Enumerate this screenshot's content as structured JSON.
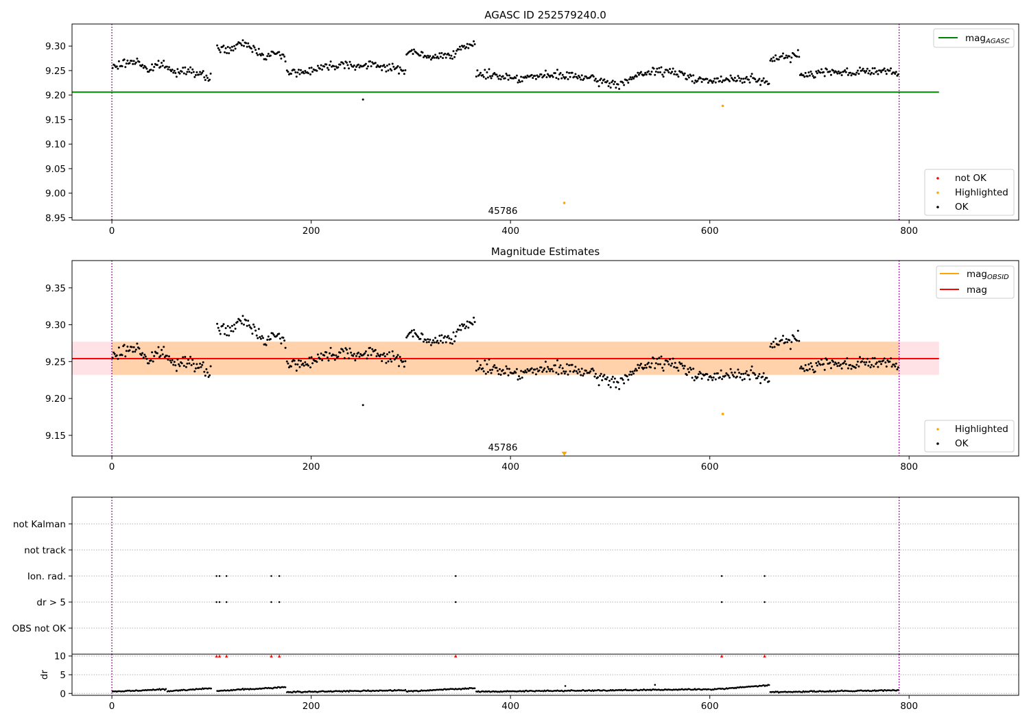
{
  "chart_data": [
    {
      "type": "scatter",
      "title": "AGASC ID 252579240.0",
      "xlim": [
        -40,
        910
      ],
      "ylim": [
        8.945,
        9.345
      ],
      "xticks": [
        0,
        200,
        400,
        600,
        800
      ],
      "yticks": [
        8.95,
        9.0,
        9.05,
        9.1,
        9.15,
        9.2,
        9.25,
        9.3
      ],
      "ytick_labels": [
        "8.95",
        "9.00",
        "9.05",
        "9.10",
        "9.15",
        "9.20",
        "9.25",
        "9.30"
      ],
      "vlines": [
        0,
        790
      ],
      "obsid_label": {
        "text": "45786",
        "x": 395
      },
      "hline": {
        "name": "mag_AGASC",
        "y": 9.206,
        "xmin": -40,
        "xmax": 830,
        "color": "#008000"
      },
      "highlighted_points": [
        {
          "x": 454,
          "y": 8.98
        },
        {
          "x": 613,
          "y": 9.178
        }
      ],
      "outlier_points": [
        {
          "x": 252,
          "y": 9.191
        }
      ],
      "ok_segments": [
        {
          "x0": 0,
          "x1": 100,
          "levels": [
            9.255,
            9.265,
            9.27,
            9.25,
            9.265,
            9.245,
            9.255,
            9.24,
            9.235
          ]
        },
        {
          "x0": 105,
          "x1": 175,
          "levels": [
            9.3,
            9.29,
            9.3,
            9.305,
            9.29,
            9.28,
            9.285,
            9.275
          ]
        },
        {
          "x0": 175,
          "x1": 295,
          "levels": [
            9.25,
            9.245,
            9.255,
            9.26,
            9.265,
            9.258,
            9.262,
            9.255,
            9.25
          ]
        },
        {
          "x0": 295,
          "x1": 365,
          "levels": [
            9.29,
            9.285,
            9.275,
            9.28,
            9.285,
            9.295,
            9.305
          ]
        },
        {
          "x0": 365,
          "x1": 510,
          "levels": [
            9.245,
            9.24,
            9.235,
            9.238,
            9.24,
            9.238,
            9.228,
            9.22
          ]
        },
        {
          "x0": 510,
          "x1": 660,
          "levels": [
            9.225,
            9.24,
            9.25,
            9.245,
            9.235,
            9.228,
            9.232,
            9.235,
            9.22
          ]
        },
        {
          "x0": 660,
          "x1": 690,
          "levels": [
            9.27,
            9.28,
            9.275,
            9.285
          ]
        },
        {
          "x0": 690,
          "x1": 790,
          "levels": [
            9.24,
            9.245,
            9.25,
            9.245,
            9.25,
            9.248,
            9.245
          ]
        }
      ],
      "legends": [
        {
          "position": "upper-right",
          "entries": [
            {
              "label_main": "mag",
              "label_sub": "AGASC",
              "kind": "line",
              "color": "#008000"
            }
          ]
        },
        {
          "position": "lower-right",
          "entries": [
            {
              "label": "not OK",
              "kind": "dot",
              "color": "#ff0000"
            },
            {
              "label": "Highlighted",
              "kind": "dot",
              "color": "#ffa500"
            },
            {
              "label": "OK",
              "kind": "dot",
              "color": "#000000"
            }
          ]
        }
      ]
    },
    {
      "type": "scatter",
      "title": "Magnitude Estimates",
      "xlim": [
        -40,
        910
      ],
      "ylim": [
        9.122,
        9.387
      ],
      "xticks": [
        0,
        200,
        400,
        600,
        800
      ],
      "yticks": [
        9.15,
        9.2,
        9.25,
        9.3,
        9.35
      ],
      "ytick_labels": [
        "9.15",
        "9.20",
        "9.25",
        "9.30",
        "9.35"
      ],
      "vlines": [
        0,
        790
      ],
      "obsid_label": {
        "text": "45786",
        "x": 395
      },
      "mag_line": {
        "name": "mag",
        "y": 9.254,
        "xmin": -40,
        "xmax": 830,
        "color": "#ff0000"
      },
      "pink_band": {
        "y0": 9.232,
        "y1": 9.277,
        "xmin": -40,
        "xmax": 830,
        "color": "#ffb6c1"
      },
      "orange_band": {
        "y0": 9.232,
        "y1": 9.277,
        "xmin": 0,
        "xmax": 790,
        "color": "#ffa500"
      },
      "highlighted_points": [
        {
          "x": 613,
          "y": 9.179
        },
        {
          "x": 454,
          "y": 9.125
        }
      ],
      "outlier_points": [
        {
          "x": 252,
          "y": 9.191
        }
      ],
      "legends": [
        {
          "position": "upper-right",
          "entries": [
            {
              "label_main": "mag",
              "label_sub": "OBSID",
              "kind": "line",
              "color": "#ffa500"
            },
            {
              "label": "mag",
              "kind": "line",
              "color": "#ff0000"
            }
          ]
        },
        {
          "position": "lower-right",
          "entries": [
            {
              "label": "Highlighted",
              "kind": "dot",
              "color": "#ffa500"
            },
            {
              "label": "OK",
              "kind": "dot",
              "color": "#000000"
            }
          ]
        }
      ]
    },
    {
      "type": "scatter",
      "xlim": [
        -40,
        910
      ],
      "categories": [
        "not Kalman",
        "not track",
        "Ion. rad.",
        "dr > 5",
        "OBS not OK"
      ],
      "vlines": [
        0,
        790
      ],
      "flag_points": {
        "Ion. rad.": [
          105,
          108,
          115,
          160,
          168,
          345,
          612,
          655
        ],
        "dr > 5": [
          105,
          108,
          115,
          160,
          168,
          345,
          612,
          655
        ]
      }
    },
    {
      "type": "scatter",
      "ylabel": "dr",
      "xlim": [
        -40,
        910
      ],
      "ylim": [
        -0.5,
        10.5
      ],
      "xticks": [
        0,
        200,
        400,
        600,
        800
      ],
      "yticks": [
        0,
        5,
        10
      ],
      "ytick_labels": [
        "0",
        "5",
        "10"
      ],
      "vlines": [
        0,
        790
      ],
      "red_markers": [
        {
          "x": 105,
          "y": 10
        },
        {
          "x": 108,
          "y": 10
        },
        {
          "x": 115,
          "y": 10
        },
        {
          "x": 160,
          "y": 10
        },
        {
          "x": 168,
          "y": 10
        },
        {
          "x": 345,
          "y": 10
        },
        {
          "x": 612,
          "y": 10
        },
        {
          "x": 655,
          "y": 10
        }
      ],
      "dr_segments": [
        {
          "x0": 0,
          "x1": 55,
          "level": 0.8
        },
        {
          "x0": 55,
          "x1": 100,
          "level": 1.0
        },
        {
          "x0": 105,
          "x1": 175,
          "level": 1.2
        },
        {
          "x0": 175,
          "x1": 295,
          "level": 0.6
        },
        {
          "x0": 295,
          "x1": 365,
          "level": 1.0
        },
        {
          "x0": 365,
          "x1": 600,
          "level": 0.8
        },
        {
          "x0": 600,
          "x1": 660,
          "level": 1.6
        },
        {
          "x0": 660,
          "x1": 790,
          "level": 0.6
        }
      ],
      "dr_spikes": [
        {
          "x": 455,
          "y": 2.0
        },
        {
          "x": 545,
          "y": 2.3
        }
      ]
    }
  ]
}
